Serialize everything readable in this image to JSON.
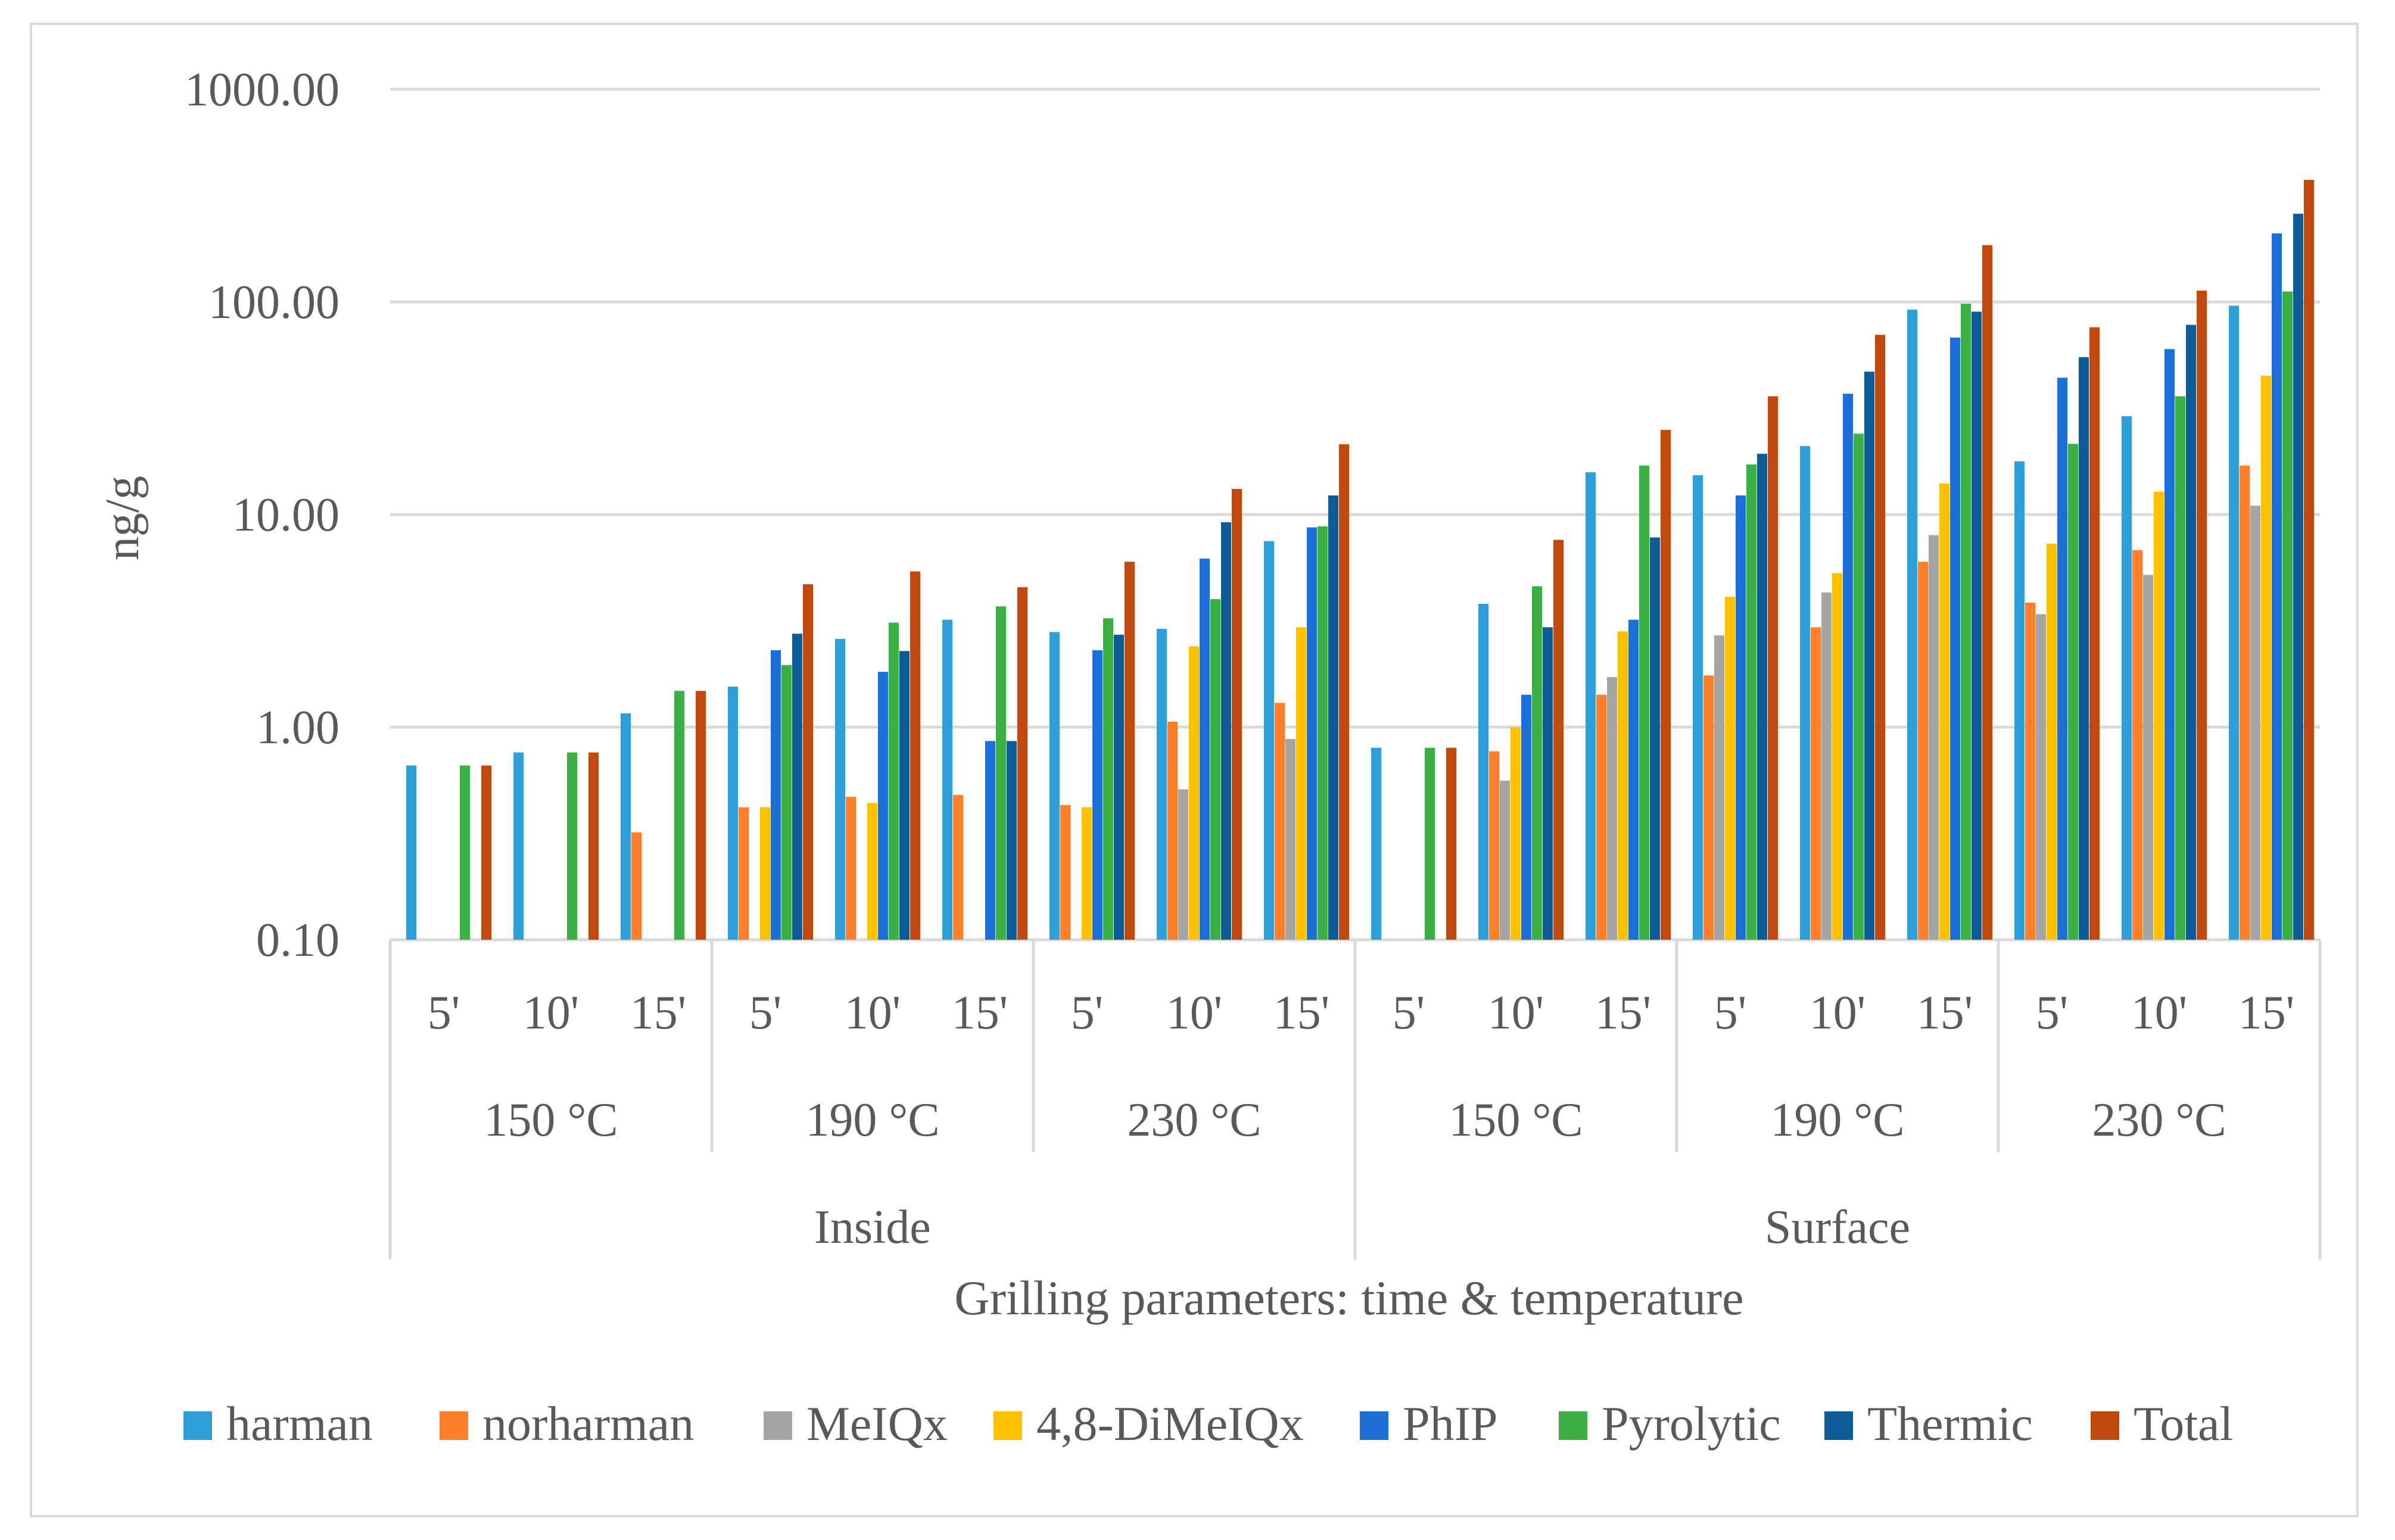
{
  "chart_data": {
    "type": "bar",
    "y_scale": "log",
    "ylim": [
      0.1,
      1000
    ],
    "yticks": [
      "1000.00",
      "100.00",
      "10.00",
      "1.00",
      "0.10"
    ],
    "ytick_values": [
      1000,
      100,
      10,
      1,
      0.1
    ],
    "ylabel": "ng/g",
    "xlabel": "Grilling parameters: time & temperature",
    "grid": true,
    "legend_position": "bottom",
    "categories": [
      "Inside 150 °C 5'",
      "Inside 150 °C 10'",
      "Inside 150 °C 15'",
      "Inside 190 °C 5'",
      "Inside 190 °C 10'",
      "Inside 190 °C 15'",
      "Inside 230 °C 5'",
      "Inside 230 °C 10'",
      "Inside 230 °C 15'",
      "Surface 150 °C 5'",
      "Surface 150 °C 10'",
      "Surface 150 °C 15'",
      "Surface 190 °C 5'",
      "Surface 190 °C 10'",
      "Surface 190 °C 15'",
      "Surface 230 °C 5'",
      "Surface 230 °C 10'",
      "Surface 230 °C 15'"
    ],
    "time_labels": [
      "5'",
      "10'",
      "15'",
      "5'",
      "10'",
      "15'",
      "5'",
      "10'",
      "15'",
      "5'",
      "10'",
      "15'",
      "5'",
      "10'",
      "15'",
      "5'",
      "10'",
      "15'"
    ],
    "temperature_labels": [
      "150 °C",
      "190 °C",
      "230 °C",
      "150 °C",
      "190 °C",
      "230 °C"
    ],
    "location_labels": [
      "Inside",
      "Surface"
    ],
    "series": [
      {
        "name": "harman",
        "color": "#2e9fd9",
        "values": [
          0.66,
          0.76,
          1.16,
          1.55,
          2.6,
          3.2,
          2.8,
          2.9,
          7.5,
          0.8,
          3.8,
          15.8,
          15.3,
          21,
          92,
          17.8,
          29,
          96
        ]
      },
      {
        "name": "norharman",
        "color": "#ff7f2a",
        "values": [
          null,
          null,
          0.32,
          0.42,
          0.47,
          0.48,
          0.43,
          1.06,
          1.3,
          null,
          0.77,
          1.42,
          1.75,
          2.95,
          6,
          3.85,
          6.8,
          17
        ]
      },
      {
        "name": "MeIQx",
        "color": "#a5a5a5",
        "values": [
          null,
          null,
          null,
          null,
          null,
          null,
          null,
          0.51,
          0.88,
          null,
          0.56,
          1.72,
          2.7,
          4.3,
          8,
          3.4,
          5.2,
          11
        ]
      },
      {
        "name": "4,8-DiMeIQx",
        "color": "#ffc000",
        "values": [
          null,
          null,
          null,
          0.42,
          0.44,
          null,
          0.42,
          2.4,
          2.95,
          null,
          1.0,
          2.82,
          4.1,
          5.3,
          14,
          7.3,
          12.8,
          45
        ]
      },
      {
        "name": "PhIP",
        "color": "#1b6fd6",
        "values": [
          null,
          null,
          null,
          2.3,
          1.82,
          0.86,
          2.3,
          6.2,
          8.7,
          null,
          1.42,
          3.2,
          12.3,
          37,
          68,
          44,
          60,
          210
        ]
      },
      {
        "name": "Pyrolytic",
        "color": "#3cb044",
        "values": [
          0.66,
          0.76,
          1.48,
          1.96,
          3.1,
          3.7,
          3.25,
          4.0,
          8.8,
          0.8,
          4.6,
          17,
          17.2,
          24,
          98,
          21.5,
          36,
          112
        ]
      },
      {
        "name": "Thermic",
        "color": "#0f5b96",
        "values": [
          null,
          null,
          null,
          2.75,
          2.28,
          0.86,
          2.72,
          9.2,
          12.3,
          null,
          2.95,
          7.8,
          19.3,
          47,
          90,
          55,
          78,
          260
        ]
      },
      {
        "name": "Total",
        "color": "#c0490f",
        "values": [
          0.66,
          0.76,
          1.48,
          4.7,
          5.4,
          4.55,
          6.0,
          13.2,
          21.4,
          0.8,
          7.6,
          25,
          36,
          70,
          185,
          76,
          113,
          375
        ]
      }
    ]
  }
}
